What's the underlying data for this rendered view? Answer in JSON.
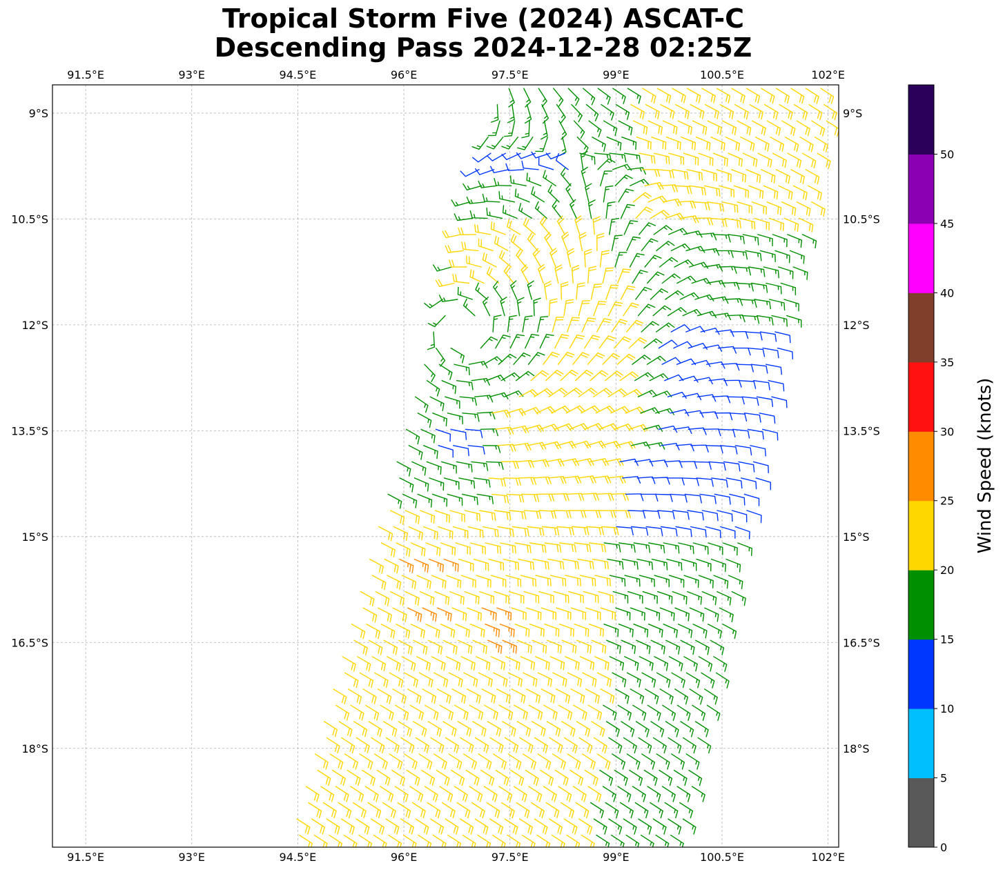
{
  "title": {
    "line1": "Tropical Storm Five (2024) ASCAT-C",
    "line2": "Descending Pass 2024-12-28 02:25Z"
  },
  "map": {
    "lon_ticks": [
      "91.5°E",
      "93°E",
      "94.5°E",
      "96°E",
      "97.5°E",
      "99°E",
      "100.5°E",
      "102°E"
    ],
    "lon_values": [
      91.5,
      93,
      94.5,
      96,
      97.5,
      99,
      100.5,
      102
    ],
    "lat_ticks": [
      "9°S",
      "10.5°S",
      "12°S",
      "13.5°S",
      "15°S",
      "16.5°S",
      "18°S"
    ],
    "lat_values": [
      -9,
      -10.5,
      -12,
      -13.5,
      -15,
      -16.5,
      -18
    ],
    "lon_range": [
      91.03,
      102.15
    ],
    "lat_range": [
      -19.4,
      -8.6
    ],
    "gridlines": "dashed",
    "background": "#ffffff"
  },
  "colorbar": {
    "label": "Wind Speed (knots)",
    "ticks": [
      "0",
      "5",
      "10",
      "15",
      "20",
      "25",
      "30",
      "35",
      "40",
      "45",
      "50"
    ],
    "bins": [
      {
        "min": 0,
        "max": 5,
        "color": "#595959"
      },
      {
        "min": 5,
        "max": 10,
        "color": "#00bfff"
      },
      {
        "min": 10,
        "max": 15,
        "color": "#0037ff"
      },
      {
        "min": 15,
        "max": 20,
        "color": "#008f00"
      },
      {
        "min": 20,
        "max": 25,
        "color": "#ffd700"
      },
      {
        "min": 25,
        "max": 30,
        "color": "#ff8c00"
      },
      {
        "min": 30,
        "max": 35,
        "color": "#ff1111"
      },
      {
        "min": 35,
        "max": 40,
        "color": "#7f3f2a"
      },
      {
        "min": 40,
        "max": 45,
        "color": "#ff00ff"
      },
      {
        "min": 45,
        "max": 50,
        "color": "#8b00b3"
      },
      {
        "min": 50,
        "max": 55,
        "color": "#2b005a"
      }
    ]
  },
  "wind_field": {
    "symbol": "wind-barb",
    "units": "knots",
    "center_lon": 96.8,
    "center_lat": -12.1
  }
}
